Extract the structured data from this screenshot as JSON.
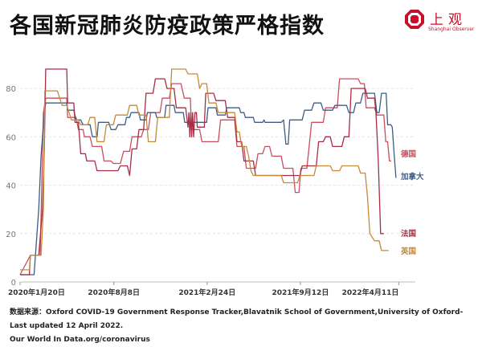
{
  "header": {
    "title": "各国新冠肺炎防疫政策严格指数",
    "logo_name": "上观",
    "logo_sub": "Shanghai Observer",
    "logo_color": "#c8102e"
  },
  "source": {
    "line1": "数据来源：Oxford COVID-19 Government Response Tracker,Blavatnik School of Government,University of Oxford-Last updated 12 April 2022.",
    "line2": "Our World In Data.org/coronavirus"
  },
  "chart_data": {
    "type": "line",
    "title": "各国新冠肺炎防疫政策严格指数",
    "ylim": [
      0,
      90
    ],
    "yticks": [
      0,
      20,
      40,
      60,
      80
    ],
    "xlim": [
      0,
      813
    ],
    "xticks": [
      {
        "value": 0,
        "label": "2020年1月20日"
      },
      {
        "value": 201,
        "label": "2020年8月8日"
      },
      {
        "value": 401,
        "label": "2021年2月24日"
      },
      {
        "value": 601,
        "label": "2021年9月12日"
      },
      {
        "value": 812,
        "label": "2022年4月11日"
      }
    ],
    "grid": true,
    "legend": "inline-right",
    "series": [
      {
        "name": "德国",
        "color": "#c94f5e",
        "points": [
          [
            0,
            3
          ],
          [
            22,
            11
          ],
          [
            43,
            11
          ],
          [
            50,
            70
          ],
          [
            55,
            76
          ],
          [
            62,
            76
          ],
          [
            100,
            76
          ],
          [
            102,
            68
          ],
          [
            120,
            68
          ],
          [
            125,
            63
          ],
          [
            135,
            63
          ],
          [
            138,
            60
          ],
          [
            150,
            60
          ],
          [
            155,
            56
          ],
          [
            175,
            56
          ],
          [
            180,
            50
          ],
          [
            195,
            50
          ],
          [
            200,
            49
          ],
          [
            215,
            49
          ],
          [
            222,
            54
          ],
          [
            235,
            54
          ],
          [
            240,
            60
          ],
          [
            260,
            60
          ],
          [
            265,
            63
          ],
          [
            275,
            63
          ],
          [
            280,
            70
          ],
          [
            300,
            70
          ],
          [
            305,
            76
          ],
          [
            320,
            76
          ],
          [
            325,
            82
          ],
          [
            345,
            82
          ],
          [
            352,
            76
          ],
          [
            365,
            76
          ],
          [
            368,
            63
          ],
          [
            385,
            63
          ],
          [
            390,
            58
          ],
          [
            425,
            58
          ],
          [
            430,
            67
          ],
          [
            460,
            67
          ],
          [
            465,
            56
          ],
          [
            480,
            56
          ],
          [
            485,
            47
          ],
          [
            505,
            47
          ],
          [
            510,
            53
          ],
          [
            520,
            53
          ],
          [
            525,
            56
          ],
          [
            535,
            56
          ],
          [
            540,
            52
          ],
          [
            560,
            52
          ],
          [
            565,
            47
          ],
          [
            585,
            47
          ],
          [
            590,
            37
          ],
          [
            598,
            37
          ],
          [
            602,
            47
          ],
          [
            615,
            47
          ],
          [
            625,
            66
          ],
          [
            650,
            66
          ],
          [
            655,
            72
          ],
          [
            680,
            72
          ],
          [
            685,
            84
          ],
          [
            725,
            84
          ],
          [
            730,
            82
          ],
          [
            738,
            82
          ],
          [
            742,
            72
          ],
          [
            760,
            72
          ],
          [
            765,
            69
          ],
          [
            780,
            69
          ],
          [
            784,
            58
          ],
          [
            788,
            58
          ],
          [
            792,
            50
          ],
          [
            796,
            50
          ]
        ]
      },
      {
        "name": "加拿大",
        "color": "#3e5d86",
        "points": [
          [
            0,
            3
          ],
          [
            20,
            3
          ],
          [
            30,
            3
          ],
          [
            40,
            30
          ],
          [
            45,
            52
          ],
          [
            52,
            70
          ],
          [
            55,
            74
          ],
          [
            100,
            74
          ],
          [
            102,
            71
          ],
          [
            115,
            71
          ],
          [
            120,
            67
          ],
          [
            130,
            67
          ],
          [
            135,
            65
          ],
          [
            150,
            65
          ],
          [
            155,
            60
          ],
          [
            165,
            60
          ],
          [
            168,
            66
          ],
          [
            190,
            66
          ],
          [
            195,
            63
          ],
          [
            205,
            63
          ],
          [
            210,
            65
          ],
          [
            225,
            65
          ],
          [
            228,
            68
          ],
          [
            235,
            68
          ],
          [
            238,
            70
          ],
          [
            255,
            70
          ],
          [
            258,
            67
          ],
          [
            270,
            67
          ],
          [
            273,
            70
          ],
          [
            290,
            70
          ],
          [
            293,
            68
          ],
          [
            310,
            68
          ],
          [
            313,
            73
          ],
          [
            330,
            73
          ],
          [
            333,
            70
          ],
          [
            350,
            70
          ],
          [
            353,
            66
          ],
          [
            375,
            66
          ],
          [
            378,
            66
          ],
          [
            400,
            66
          ],
          [
            403,
            72
          ],
          [
            420,
            72
          ],
          [
            423,
            69
          ],
          [
            440,
            69
          ],
          [
            443,
            72
          ],
          [
            470,
            72
          ],
          [
            473,
            70
          ],
          [
            480,
            70
          ],
          [
            483,
            68
          ],
          [
            500,
            68
          ],
          [
            503,
            66
          ],
          [
            520,
            66
          ],
          [
            523,
            67
          ],
          [
            525,
            66
          ],
          [
            560,
            66
          ],
          [
            565,
            67
          ],
          [
            570,
            57
          ],
          [
            575,
            57
          ],
          [
            578,
            67
          ],
          [
            605,
            67
          ],
          [
            610,
            71
          ],
          [
            620,
            71
          ],
          [
            625,
            71
          ],
          [
            630,
            74
          ],
          [
            645,
            74
          ],
          [
            650,
            71
          ],
          [
            670,
            71
          ],
          [
            675,
            73
          ],
          [
            700,
            73
          ],
          [
            705,
            70
          ],
          [
            715,
            70
          ],
          [
            720,
            74
          ],
          [
            730,
            74
          ],
          [
            735,
            78
          ],
          [
            760,
            78
          ],
          [
            765,
            70
          ],
          [
            770,
            70
          ],
          [
            775,
            78
          ],
          [
            785,
            78
          ],
          [
            788,
            65
          ],
          [
            795,
            65
          ],
          [
            798,
            64
          ],
          [
            802,
            53
          ],
          [
            806,
            43
          ]
        ]
      },
      {
        "name": "法国",
        "color": "#a62d45",
        "points": [
          [
            0,
            3
          ],
          [
            20,
            3
          ],
          [
            22,
            11
          ],
          [
            40,
            11
          ],
          [
            48,
            30
          ],
          [
            52,
            55
          ],
          [
            55,
            88
          ],
          [
            100,
            88
          ],
          [
            102,
            74
          ],
          [
            115,
            74
          ],
          [
            118,
            66
          ],
          [
            125,
            66
          ],
          [
            130,
            53
          ],
          [
            140,
            53
          ],
          [
            143,
            50
          ],
          [
            160,
            50
          ],
          [
            165,
            46
          ],
          [
            175,
            46
          ],
          [
            180,
            46
          ],
          [
            210,
            46
          ],
          [
            215,
            48
          ],
          [
            230,
            48
          ],
          [
            235,
            44
          ],
          [
            240,
            55
          ],
          [
            250,
            55
          ],
          [
            255,
            63
          ],
          [
            265,
            63
          ],
          [
            270,
            78
          ],
          [
            285,
            78
          ],
          [
            290,
            84
          ],
          [
            310,
            84
          ],
          [
            315,
            80
          ],
          [
            330,
            80
          ],
          [
            335,
            72
          ],
          [
            355,
            72
          ],
          [
            360,
            64
          ],
          [
            362,
            70
          ],
          [
            364,
            60
          ],
          [
            366,
            70
          ],
          [
            368,
            60
          ],
          [
            370,
            70
          ],
          [
            372,
            60
          ],
          [
            375,
            70
          ],
          [
            378,
            70
          ],
          [
            380,
            64
          ],
          [
            395,
            64
          ],
          [
            398,
            78
          ],
          [
            415,
            78
          ],
          [
            420,
            75
          ],
          [
            440,
            75
          ],
          [
            445,
            68
          ],
          [
            460,
            68
          ],
          [
            465,
            58
          ],
          [
            475,
            58
          ],
          [
            480,
            50
          ],
          [
            500,
            50
          ],
          [
            505,
            44
          ],
          [
            520,
            44
          ],
          [
            525,
            44
          ],
          [
            580,
            44
          ],
          [
            585,
            44
          ],
          [
            600,
            44
          ],
          [
            605,
            48
          ],
          [
            635,
            48
          ],
          [
            640,
            58
          ],
          [
            650,
            58
          ],
          [
            655,
            60
          ],
          [
            665,
            60
          ],
          [
            670,
            56
          ],
          [
            690,
            56
          ],
          [
            695,
            60
          ],
          [
            705,
            60
          ],
          [
            710,
            80
          ],
          [
            740,
            80
          ],
          [
            745,
            76
          ],
          [
            760,
            76
          ],
          [
            763,
            70
          ],
          [
            768,
            50
          ],
          [
            773,
            20
          ],
          [
            780,
            20
          ]
        ]
      },
      {
        "name": "英国",
        "color": "#c58a3a",
        "points": [
          [
            0,
            5
          ],
          [
            20,
            5
          ],
          [
            22,
            11
          ],
          [
            45,
            11
          ],
          [
            50,
            30
          ],
          [
            53,
            79
          ],
          [
            60,
            79
          ],
          [
            80,
            79
          ],
          [
            90,
            73
          ],
          [
            100,
            73
          ],
          [
            110,
            67
          ],
          [
            125,
            67
          ],
          [
            130,
            65
          ],
          [
            145,
            65
          ],
          [
            150,
            68
          ],
          [
            160,
            68
          ],
          [
            165,
            58
          ],
          [
            180,
            58
          ],
          [
            185,
            65
          ],
          [
            200,
            65
          ],
          [
            205,
            69
          ],
          [
            230,
            69
          ],
          [
            235,
            73
          ],
          [
            250,
            73
          ],
          [
            255,
            69
          ],
          [
            270,
            69
          ],
          [
            275,
            58
          ],
          [
            290,
            58
          ],
          [
            295,
            68
          ],
          [
            320,
            68
          ],
          [
            325,
            88
          ],
          [
            355,
            88
          ],
          [
            360,
            86
          ],
          [
            380,
            86
          ],
          [
            385,
            80
          ],
          [
            390,
            82
          ],
          [
            400,
            82
          ],
          [
            405,
            74
          ],
          [
            420,
            74
          ],
          [
            425,
            70
          ],
          [
            460,
            70
          ],
          [
            465,
            62
          ],
          [
            470,
            62
          ],
          [
            475,
            56
          ],
          [
            485,
            56
          ],
          [
            490,
            52
          ],
          [
            495,
            46
          ],
          [
            500,
            44
          ],
          [
            560,
            44
          ],
          [
            565,
            41
          ],
          [
            595,
            41
          ],
          [
            600,
            44
          ],
          [
            630,
            44
          ],
          [
            635,
            48
          ],
          [
            665,
            48
          ],
          [
            670,
            46
          ],
          [
            685,
            46
          ],
          [
            690,
            48
          ],
          [
            725,
            48
          ],
          [
            730,
            45
          ],
          [
            740,
            45
          ],
          [
            745,
            35
          ],
          [
            750,
            20
          ],
          [
            760,
            17
          ],
          [
            770,
            17
          ],
          [
            775,
            13
          ],
          [
            790,
            13
          ]
        ]
      }
    ]
  }
}
